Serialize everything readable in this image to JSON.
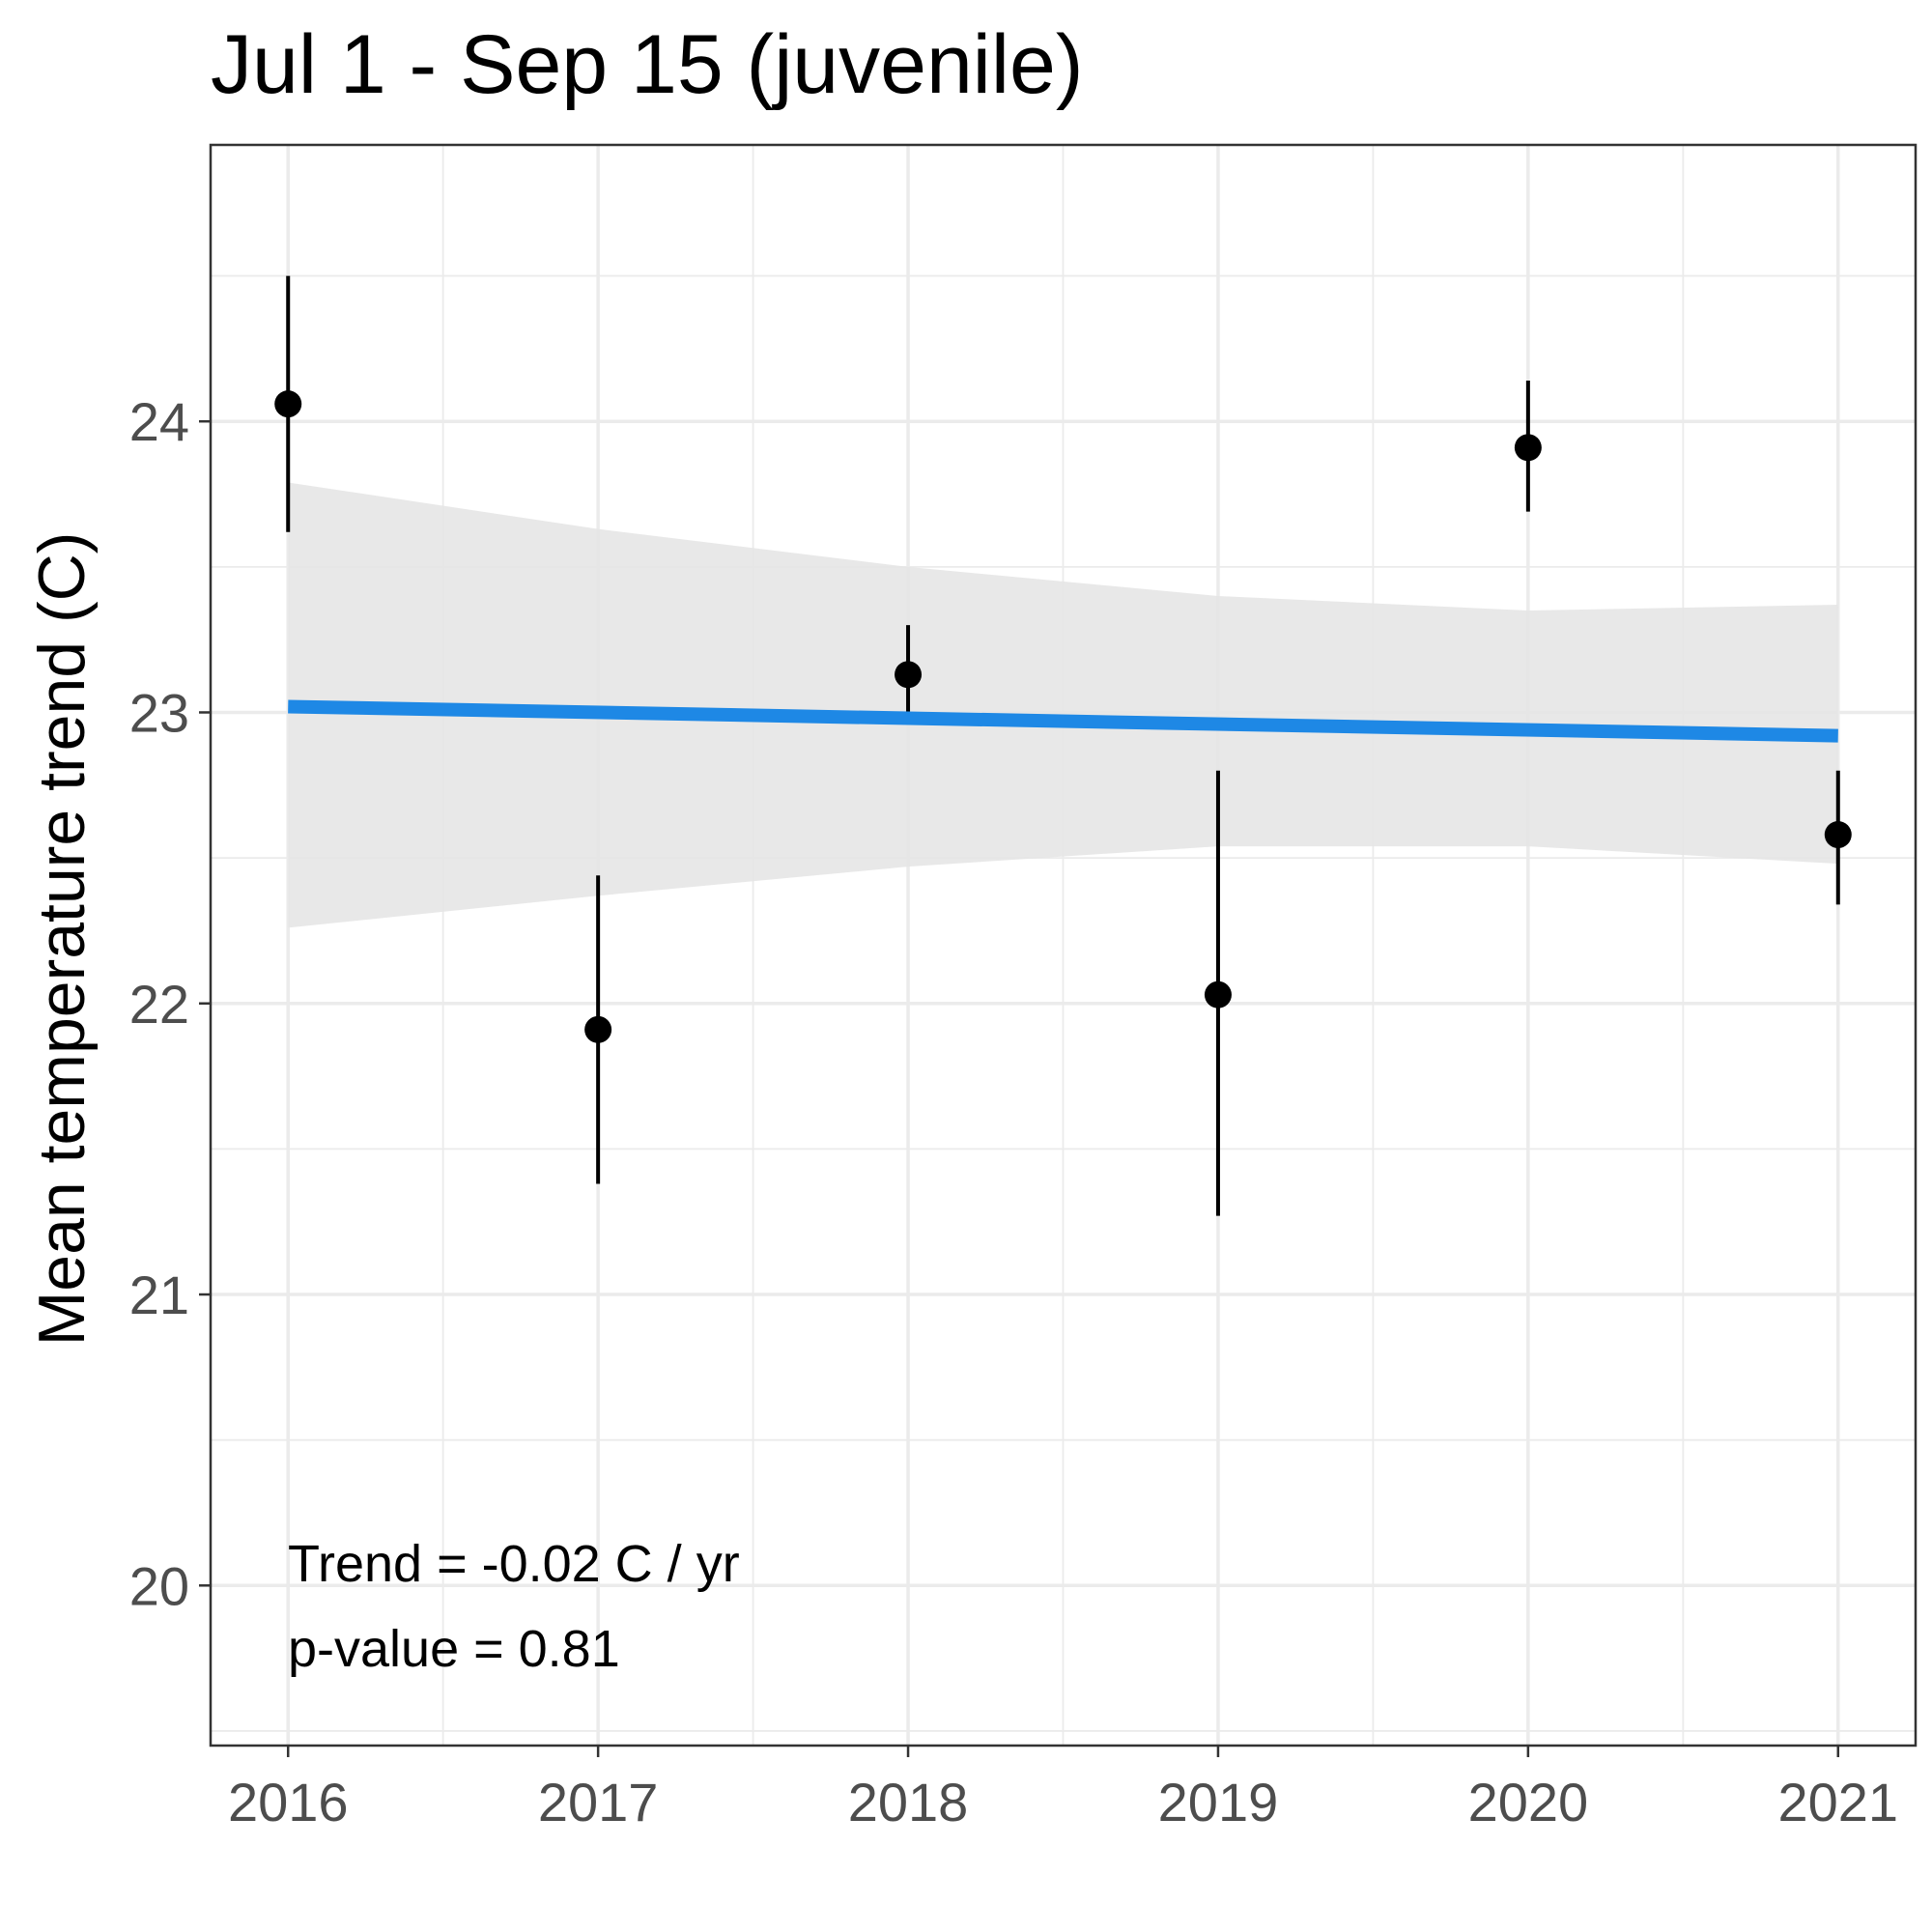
{
  "chart_data": {
    "type": "scatter",
    "title": "Jul 1 - Sep 15 (juvenile)",
    "xlabel": "",
    "ylabel": "Mean temperature trend (C)",
    "xlim": [
      2015.75,
      2021.25
    ],
    "ylim": [
      19.45,
      24.95
    ],
    "x_ticks": [
      2016,
      2017,
      2018,
      2019,
      2020,
      2021
    ],
    "x_tick_labels": [
      "2016",
      "2017",
      "2018",
      "2019",
      "2020",
      "2021"
    ],
    "y_ticks": [
      20,
      21,
      22,
      23,
      24
    ],
    "y_tick_labels": [
      "20",
      "21",
      "22",
      "23",
      "24"
    ],
    "grid": true,
    "points": [
      {
        "x": 2016,
        "y": 24.06,
        "ymin": 23.62,
        "ymax": 24.5
      },
      {
        "x": 2017,
        "y": 21.91,
        "ymin": 21.38,
        "ymax": 22.44
      },
      {
        "x": 2018,
        "y": 23.13,
        "ymin": 22.96,
        "ymax": 23.3
      },
      {
        "x": 2019,
        "y": 22.03,
        "ymin": 21.27,
        "ymax": 22.8
      },
      {
        "x": 2020,
        "y": 23.91,
        "ymin": 23.69,
        "ymax": 24.14
      },
      {
        "x": 2021,
        "y": 22.58,
        "ymin": 22.34,
        "ymax": 22.8
      }
    ],
    "trend_line": {
      "x": [
        2016,
        2021
      ],
      "y": [
        23.02,
        22.92
      ],
      "color": "#1e88e5"
    },
    "confidence_band": {
      "x": [
        2016,
        2017,
        2018,
        2019,
        2020,
        2021
      ],
      "lower": [
        22.26,
        22.37,
        22.47,
        22.54,
        22.54,
        22.48
      ],
      "upper": [
        23.79,
        23.63,
        23.5,
        23.4,
        23.35,
        23.37
      ],
      "color": "#e6e6e6"
    },
    "annotations": [
      "Trend = -0.02 C / yr",
      "p-value = 0.81"
    ],
    "point_color": "#000000"
  }
}
